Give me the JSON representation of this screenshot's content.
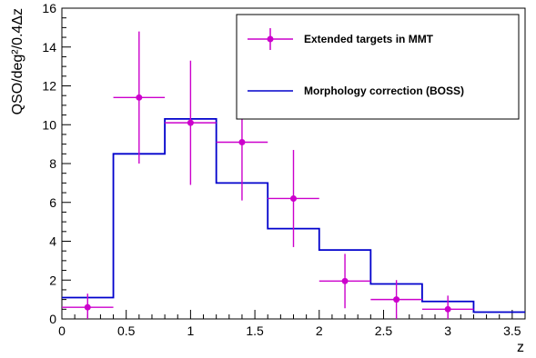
{
  "chart_data": {
    "type": "scatter",
    "xlabel": "z",
    "ylabel": "QSO/deg²/0.4Δz",
    "xlim": [
      0,
      3.6
    ],
    "ylim": [
      0,
      16
    ],
    "x_ticks": [
      "0",
      "0.5",
      "1",
      "1.5",
      "2",
      "2.5",
      "3",
      "3.5"
    ],
    "y_ticks": [
      "0",
      "2",
      "4",
      "6",
      "8",
      "10",
      "12",
      "14",
      "16"
    ],
    "legend_position": "top-right",
    "grid": false,
    "series": [
      {
        "name": "Extended targets in MMT",
        "kind": "points-with-errorbars",
        "color": "#cc00cc",
        "points": [
          {
            "x": 0.2,
            "y": 0.6,
            "xerr": 0.2,
            "yerr_low": 0.6,
            "yerr_high": 0.7
          },
          {
            "x": 0.6,
            "y": 11.4,
            "xerr": 0.2,
            "yerr_low": 3.4,
            "yerr_high": 3.4
          },
          {
            "x": 1.0,
            "y": 10.1,
            "xerr": 0.2,
            "yerr_low": 3.2,
            "yerr_high": 3.2
          },
          {
            "x": 1.4,
            "y": 9.1,
            "xerr": 0.2,
            "yerr_low": 3.0,
            "yerr_high": 1.3
          },
          {
            "x": 1.8,
            "y": 6.2,
            "xerr": 0.2,
            "yerr_low": 2.5,
            "yerr_high": 2.5
          },
          {
            "x": 2.2,
            "y": 1.95,
            "xerr": 0.2,
            "yerr_low": 1.4,
            "yerr_high": 1.4
          },
          {
            "x": 2.6,
            "y": 1.0,
            "xerr": 0.2,
            "yerr_low": 1.0,
            "yerr_high": 1.0
          },
          {
            "x": 3.0,
            "y": 0.5,
            "xerr": 0.2,
            "yerr_low": 0.5,
            "yerr_high": 0.7
          }
        ]
      },
      {
        "name": "Morphology correction (BOSS)",
        "kind": "step-histogram",
        "color": "#0000cc",
        "bin_edges": [
          0,
          0.4,
          0.8,
          1.2,
          1.6,
          2.0,
          2.4,
          2.8,
          3.2,
          3.6
        ],
        "values": [
          1.1,
          8.5,
          10.3,
          7.0,
          4.65,
          3.55,
          1.8,
          0.9,
          0.35
        ]
      }
    ]
  }
}
